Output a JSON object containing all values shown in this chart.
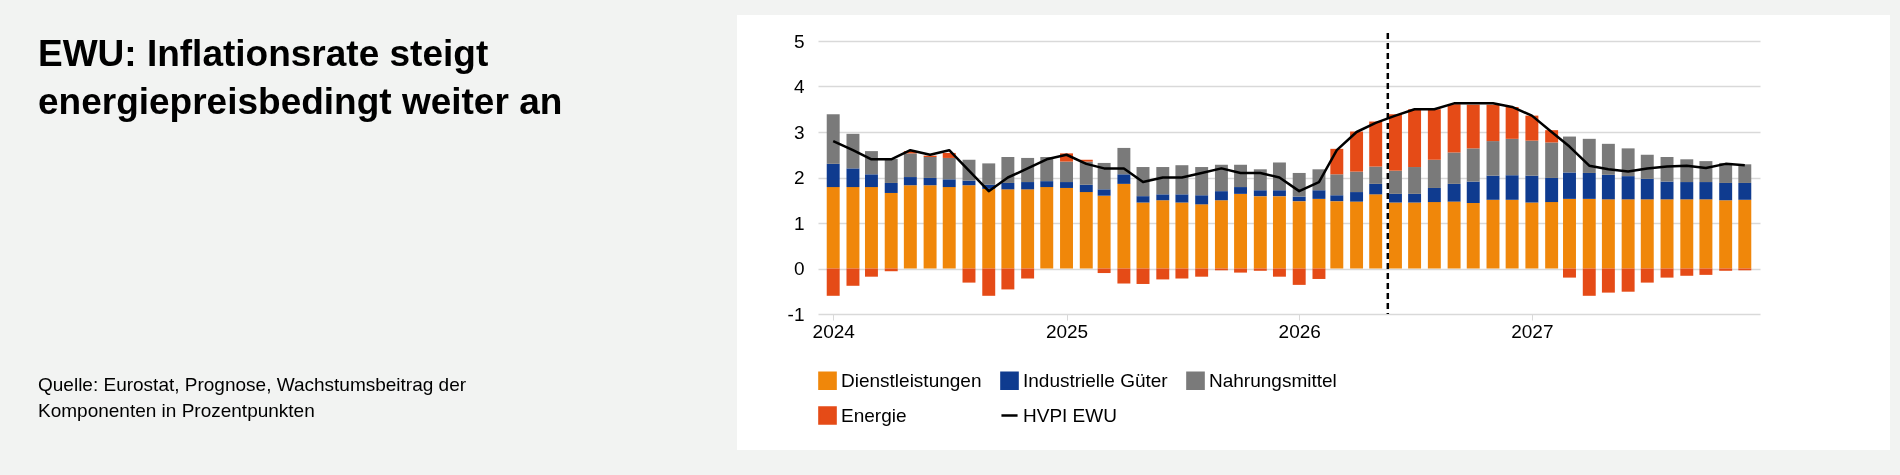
{
  "chart_data": {
    "type": "bar",
    "stacked": true,
    "title": "EWU: Inflationsrate steigt energiepreisbedingt weiter an",
    "annotations": [
      "Quelle: Eurostat, Prognose, Wachstumsbeitrag der Komponenten in Prozentpunkten"
    ],
    "x": [
      "2024-01",
      "2024-02",
      "2024-03",
      "2024-04",
      "2024-05",
      "2024-06",
      "2024-07",
      "2024-08",
      "2024-09",
      "2024-10",
      "2024-11",
      "2024-12",
      "2025-01",
      "2025-02",
      "2025-03",
      "2025-04",
      "2025-05",
      "2025-06",
      "2025-07",
      "2025-08",
      "2025-09",
      "2025-10",
      "2025-11",
      "2025-12",
      "2026-01",
      "2026-02",
      "2026-03",
      "2026-04",
      "2026-05",
      "2026-06",
      "2026-07",
      "2026-08",
      "2026-09",
      "2026-10",
      "2026-11",
      "2026-12",
      "2027-01",
      "2027-02",
      "2027-03",
      "2027-04",
      "2027-05",
      "2027-06",
      "2027-07",
      "2027-08",
      "2027-09",
      "2027-10",
      "2027-11",
      "2027-12"
    ],
    "xlim": [
      "2023-12-16",
      "2027-12-17"
    ],
    "xticks": [
      "2024",
      "2025",
      "2026",
      "2027"
    ],
    "ylim": [
      -1,
      5
    ],
    "yticks": [
      -1,
      0,
      1,
      2,
      3,
      4,
      5
    ],
    "grid": "y",
    "legend": "bottom",
    "series": [
      {
        "name": "Dienstleistungen",
        "color": "#f0870a",
        "values": [
          1.79,
          1.79,
          1.79,
          1.66,
          1.83,
          1.83,
          1.79,
          1.83,
          1.75,
          1.74,
          1.74,
          1.79,
          1.77,
          1.68,
          1.6,
          1.86,
          1.45,
          1.5,
          1.45,
          1.41,
          1.5,
          1.64,
          1.59,
          1.59,
          1.48,
          1.53,
          1.48,
          1.47,
          1.63,
          1.45,
          1.45,
          1.46,
          1.47,
          1.44,
          1.51,
          1.51,
          1.45,
          1.46,
          1.53,
          1.53,
          1.52,
          1.52,
          1.52,
          1.52,
          1.52,
          1.52,
          1.5,
          1.51
        ]
      },
      {
        "name": "Industrielle Güter",
        "color": "#0f3b8f",
        "values": [
          0.51,
          0.41,
          0.28,
          0.22,
          0.18,
          0.16,
          0.17,
          0.1,
          0.09,
          0.14,
          0.16,
          0.13,
          0.13,
          0.16,
          0.14,
          0.21,
          0.14,
          0.13,
          0.18,
          0.2,
          0.2,
          0.15,
          0.13,
          0.13,
          0.1,
          0.19,
          0.13,
          0.21,
          0.23,
          0.19,
          0.19,
          0.31,
          0.39,
          0.47,
          0.53,
          0.54,
          0.59,
          0.53,
          0.58,
          0.57,
          0.54,
          0.51,
          0.45,
          0.39,
          0.38,
          0.38,
          0.38,
          0.37
        ]
      },
      {
        "name": "Nahrungsmittel",
        "color": "#7a7a7a",
        "values": [
          1.09,
          0.76,
          0.51,
          0.53,
          0.52,
          0.46,
          0.47,
          0.46,
          0.47,
          0.57,
          0.53,
          0.53,
          0.45,
          0.51,
          0.58,
          0.58,
          0.64,
          0.6,
          0.64,
          0.62,
          0.58,
          0.49,
          0.46,
          0.61,
          0.52,
          0.46,
          0.46,
          0.45,
          0.38,
          0.51,
          0.59,
          0.62,
          0.69,
          0.73,
          0.76,
          0.8,
          0.77,
          0.78,
          0.79,
          0.75,
          0.68,
          0.61,
          0.53,
          0.54,
          0.5,
          0.46,
          0.44,
          0.41
        ]
      },
      {
        "name": "Energie",
        "color": "#e54b17",
        "values": [
          -0.6,
          -0.38,
          -0.18,
          -0.06,
          0.05,
          0.03,
          0.11,
          -0.31,
          -0.6,
          -0.46,
          -0.22,
          0,
          0.18,
          0.04,
          -0.1,
          -0.33,
          -0.34,
          -0.24,
          -0.22,
          -0.18,
          -0.04,
          -0.09,
          -0.05,
          -0.18,
          -0.36,
          -0.23,
          0.56,
          0.88,
          0.99,
          1.24,
          1.27,
          1.11,
          1.06,
          0.96,
          0.8,
          0.7,
          0.55,
          0.27,
          -0.2,
          -0.6,
          -0.53,
          -0.51,
          -0.31,
          -0.2,
          -0.16,
          -0.14,
          -0.05,
          -0.04
        ]
      },
      {
        "name": "HVPI EWU",
        "type": "line",
        "color": "#000000",
        "values": [
          2.8,
          2.6,
          2.4,
          2.4,
          2.6,
          2.5,
          2.6,
          2.15,
          1.7,
          2.0,
          2.2,
          2.4,
          2.5,
          2.3,
          2.2,
          2.2,
          1.9,
          2.0,
          2.0,
          2.1,
          2.2,
          2.1,
          2.1,
          2.0,
          1.7,
          1.9,
          2.6,
          3.0,
          3.2,
          3.36,
          3.5,
          3.5,
          3.63,
          3.63,
          3.63,
          3.55,
          3.36,
          3.0,
          2.68,
          2.26,
          2.18,
          2.13,
          2.2,
          2.24,
          2.26,
          2.21,
          2.3,
          2.27
        ]
      }
    ],
    "ref_lines": [
      {
        "axis": "x",
        "value": "2026-05-20",
        "color": "#000000",
        "line_style": "dashed"
      }
    ]
  }
}
